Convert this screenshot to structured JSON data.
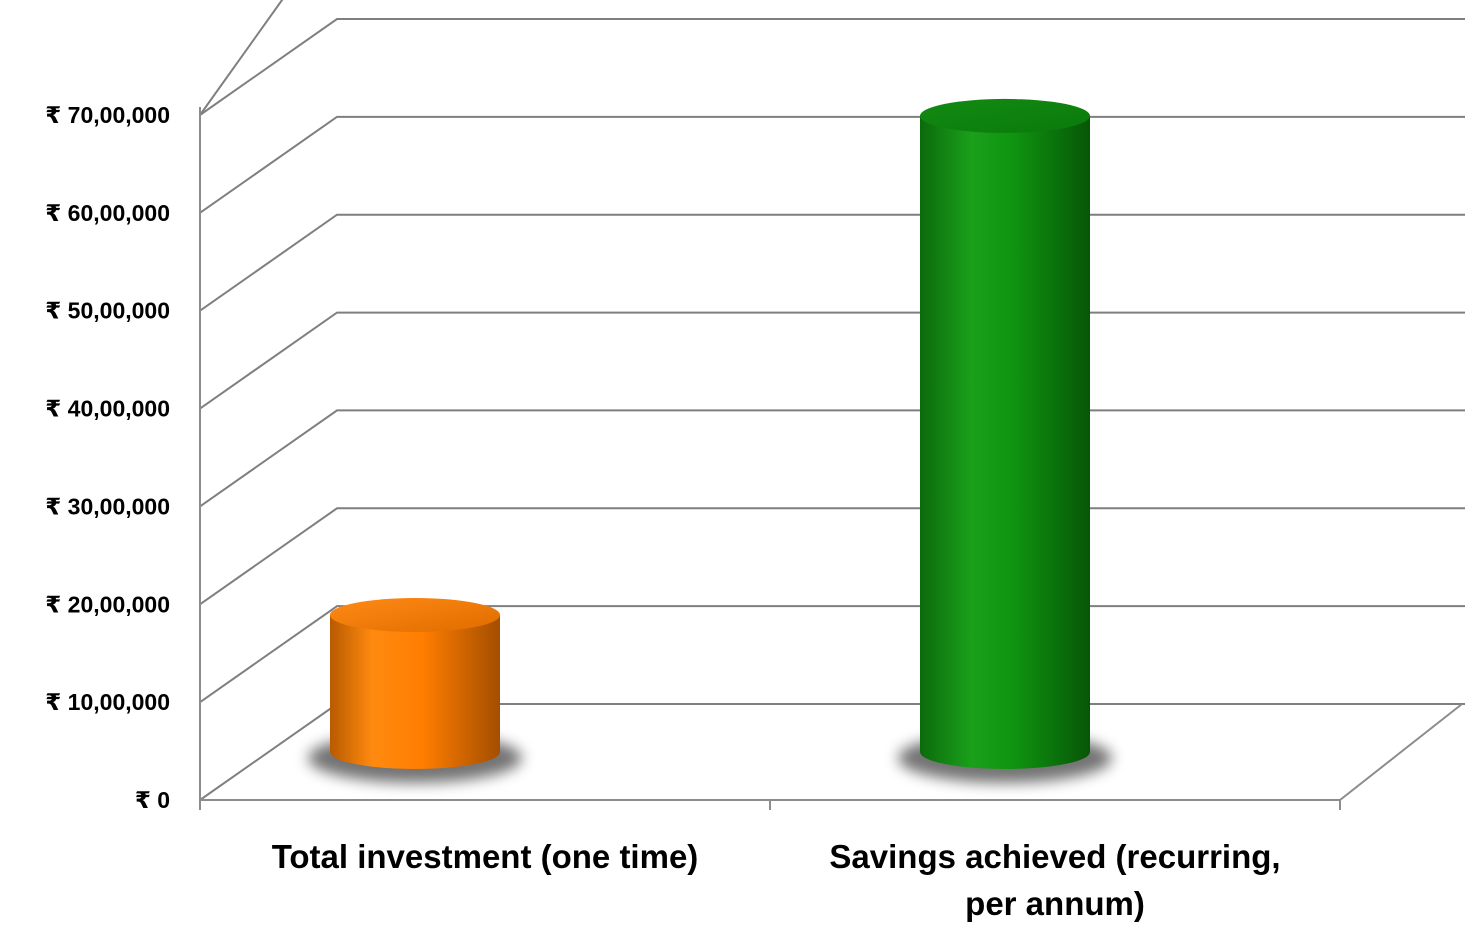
{
  "chart_data": {
    "type": "bar",
    "style": "3d-cylinder",
    "categories": [
      [
        "Total investment (one time)"
      ],
      [
        "Savings achieved (recurring,",
        "per annum)"
      ]
    ],
    "values": [
      1400000,
      6500000
    ],
    "bar_colors": [
      "#f07800",
      "#169618"
    ],
    "currency_symbol": "₹",
    "ylim": [
      0,
      7000000
    ],
    "y_ticks": [
      0,
      1000000,
      2000000,
      3000000,
      4000000,
      5000000,
      6000000,
      7000000
    ],
    "y_tick_labels": [
      "₹ 0",
      "₹ 10,00,000",
      "₹ 20,00,000",
      "₹ 30,00,000",
      "₹ 40,00,000",
      "₹ 50,00,000",
      "₹ 60,00,000",
      "₹ 70,00,000"
    ],
    "title": "",
    "xlabel": "",
    "ylabel": "",
    "grid": true,
    "legend": "none"
  }
}
